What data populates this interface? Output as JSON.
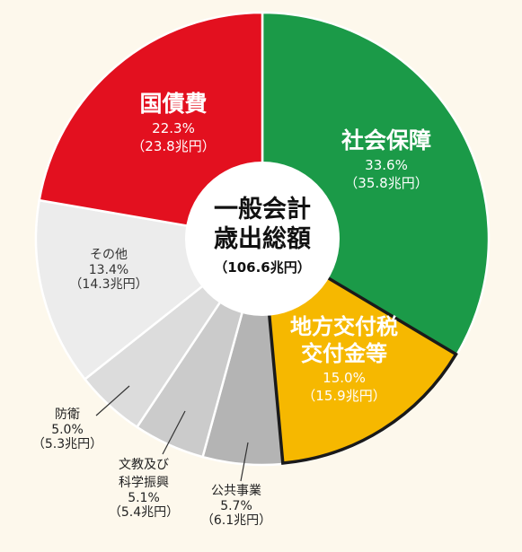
{
  "chart_data": {
    "type": "pie",
    "center_label": {
      "line1": "一般会計",
      "line2": "歳出総額",
      "total": "（106.6兆円）"
    },
    "slices": [
      {
        "name": "社会保障",
        "percent": 33.6,
        "percent_label": "33.6%",
        "amount_label": "（35.8兆円）",
        "color": "#1b9a48"
      },
      {
        "name": "地方交付税交付金等",
        "name_lines": [
          "地方交付税",
          "交付金等"
        ],
        "percent": 15.0,
        "percent_label": "15.0%",
        "amount_label": "（15.9兆円）",
        "color": "#f6b800"
      },
      {
        "name": "公共事業",
        "percent": 5.7,
        "percent_label": "5.7%",
        "amount_label": "（6.1兆円）",
        "color": "#b4b4b4"
      },
      {
        "name": "文教及び科学振興",
        "name_lines": [
          "文教及び",
          "科学振興"
        ],
        "percent": 5.1,
        "percent_label": "5.1%",
        "amount_label": "（5.4兆円）",
        "color": "#cbcbcb"
      },
      {
        "name": "防衛",
        "percent": 5.0,
        "percent_label": "5.0%",
        "amount_label": "（5.3兆円）",
        "color": "#dcdcdc"
      },
      {
        "name": "その他",
        "percent": 13.4,
        "percent_label": "13.4%",
        "amount_label": "（14.3兆円）",
        "color": "#ececec"
      },
      {
        "name": "国債費",
        "percent": 22.3,
        "percent_label": "22.3%",
        "amount_label": "（23.8兆円）",
        "color": "#e3101f"
      }
    ],
    "outlined_slice": "地方交付税交付金等"
  }
}
